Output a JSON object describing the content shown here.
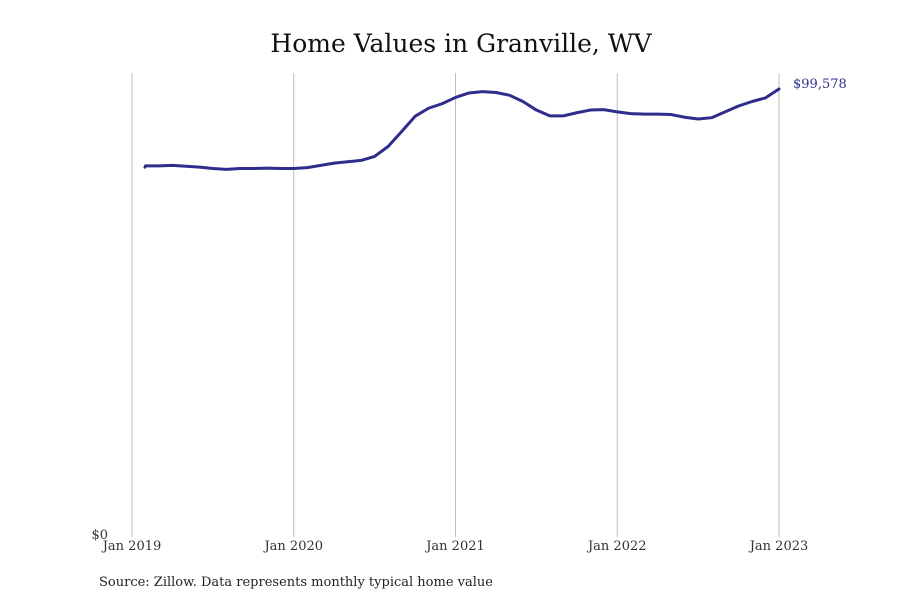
{
  "chart_data": {
    "type": "line",
    "title": "Home Values in Granville, WV",
    "xlabel": "",
    "ylabel": "",
    "grid": "vertical",
    "legend": "none",
    "line_color": "#2e2d8c",
    "y_tick_labels": [
      "$0"
    ],
    "x_tick_labels": [
      "Jan 2019",
      "Jan 2020",
      "Jan 2021",
      "Jan 2022",
      "Jan 2023"
    ],
    "x_start": "2019-01",
    "x_end": "2023-01",
    "ylim": [
      0,
      99578
    ],
    "end_label": "$99,578",
    "series": [
      {
        "values": [
          82200,
          82500,
          82500,
          82600,
          82400,
          82200,
          81900,
          81700,
          81900,
          81900,
          82000,
          81900,
          81900,
          82100,
          82600,
          83100,
          83400,
          83700,
          84600,
          86800,
          90100,
          93500,
          95300,
          96300,
          97700,
          98700,
          99000,
          98800,
          98200,
          96800,
          94900,
          93600,
          93600,
          94300,
          94900,
          95000,
          94500,
          94100,
          94000,
          94000,
          93900,
          93300,
          92900,
          93200,
          94500,
          95800,
          96800,
          97600,
          99578
        ]
      }
    ]
  },
  "source": "Source: Zillow. Data represents monthly typical home value"
}
